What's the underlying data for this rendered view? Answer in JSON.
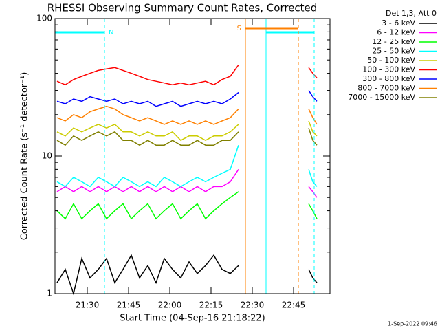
{
  "chart_data": {
    "type": "line",
    "title": "RHESSI Observing Summary Count Rates, Corrected",
    "x_label": "Start Time (04-Sep-16 21:18:22)",
    "y_label": "Corrected Count Rate (s⁻¹ detector⁻¹)",
    "legend_title": "Det 1,3, Att 0",
    "footer": "1-Sep-2022 09:46",
    "log_y": true,
    "legend_position": "right",
    "xlim": [
      18.25,
      118.25
    ],
    "xticks": [
      {
        "value": 30,
        "label": "21:30"
      },
      {
        "value": 45,
        "label": "21:45"
      },
      {
        "value": 60,
        "label": "22:00"
      },
      {
        "value": 75,
        "label": "22:15"
      },
      {
        "value": 90,
        "label": "22:30"
      },
      {
        "value": 105,
        "label": "22:45"
      }
    ],
    "ylim": [
      1,
      100
    ],
    "yticks": [
      1,
      10,
      100
    ],
    "yminorticks": [
      2,
      3,
      4,
      5,
      6,
      7,
      8,
      9,
      20,
      30,
      40,
      50,
      60,
      70,
      80,
      90
    ],
    "annotations": [
      {
        "label": "N",
        "color": "#00ffff",
        "start": 18.25,
        "end": 36.25,
        "row": 0
      },
      {
        "color": "#00ffff",
        "start": 95,
        "end": 112.5,
        "row": 0
      },
      {
        "label": "S",
        "color": "#ff8000",
        "start": 87.5,
        "end": 106.75,
        "row": 1
      }
    ],
    "x": [
      19,
      22,
      25,
      28,
      31,
      34,
      37,
      40,
      43,
      46,
      49,
      52,
      55,
      58,
      61,
      64,
      67,
      70,
      73,
      76,
      79,
      82,
      85,
      98,
      110.5,
      112,
      113.5
    ],
    "series": [
      {
        "name": "3 - 6 keV",
        "color": "#000000",
        "values": [
          1.2,
          1.5,
          1,
          1.8,
          1.3,
          1.5,
          1.8,
          1.2,
          1.5,
          1.9,
          1.3,
          1.6,
          1.2,
          1.8,
          1.5,
          1.3,
          1.7,
          1.4,
          1.6,
          1.9,
          1.5,
          1.4,
          1.6,
          null,
          1.5,
          1.3,
          1.2
        ]
      },
      {
        "name": "6 - 12 keV",
        "color": "#ff00ff",
        "values": [
          5.5,
          6,
          5.5,
          6,
          5.5,
          6,
          5.5,
          6,
          5.5,
          6,
          5.5,
          6,
          5.5,
          6,
          5.5,
          6,
          5.5,
          6,
          5.5,
          6,
          6,
          6.5,
          8,
          null,
          6,
          5.5,
          5
        ]
      },
      {
        "name": "12 - 25 keV",
        "color": "#00ff00",
        "values": [
          4,
          3.5,
          4.5,
          3.5,
          4,
          4.5,
          3.5,
          4,
          4.5,
          3.5,
          4,
          4.5,
          3.5,
          4,
          4.5,
          3.5,
          4,
          4.5,
          3.5,
          4,
          4.5,
          5,
          5.5,
          null,
          4.5,
          4,
          3.5
        ]
      },
      {
        "name": "25 - 50 keV",
        "color": "#00ffff",
        "values": [
          6.5,
          6,
          7,
          6.5,
          6,
          7,
          6.5,
          6,
          7,
          6.5,
          6,
          6.5,
          6,
          7,
          6.5,
          6,
          6.5,
          7,
          6.5,
          7,
          7.5,
          8,
          12,
          null,
          8,
          6.5,
          6
        ]
      },
      {
        "name": "50 - 100 keV",
        "color": "#cccc00",
        "values": [
          15,
          14,
          16,
          15,
          16,
          17,
          16,
          17,
          15,
          15,
          14,
          15,
          14,
          14,
          15,
          13,
          14,
          14,
          13,
          14,
          14,
          15,
          17,
          null,
          18,
          15,
          14
        ]
      },
      {
        "name": "100 - 300 keV",
        "color": "#ff0000",
        "values": [
          35,
          33,
          36,
          38,
          40,
          42,
          43,
          44,
          42,
          40,
          38,
          36,
          35,
          34,
          33,
          34,
          33,
          34,
          35,
          33,
          36,
          38,
          46,
          null,
          44,
          40,
          37
        ]
      },
      {
        "name": "300 - 800 keV",
        "color": "#0000ff",
        "values": [
          25,
          24,
          26,
          25,
          27,
          26,
          25,
          26,
          24,
          25,
          24,
          25,
          23,
          24,
          25,
          23,
          24,
          25,
          24,
          25,
          24,
          26,
          29,
          null,
          30,
          27,
          25
        ]
      },
      {
        "name": "800 - 7000 keV",
        "color": "#ff8000",
        "values": [
          19,
          18,
          20,
          19,
          21,
          22,
          23,
          22,
          20,
          19,
          18,
          19,
          18,
          17,
          18,
          17,
          18,
          17,
          18,
          17,
          18,
          19,
          22,
          null,
          22,
          19,
          17
        ]
      },
      {
        "name": "7000 - 15000 keV",
        "color": "#808000",
        "values": [
          13,
          12,
          14,
          13,
          14,
          15,
          14,
          15,
          13,
          13,
          12,
          13,
          12,
          12,
          13,
          12,
          12,
          13,
          12,
          12,
          13,
          13,
          15,
          null,
          16,
          13,
          12
        ]
      }
    ]
  }
}
